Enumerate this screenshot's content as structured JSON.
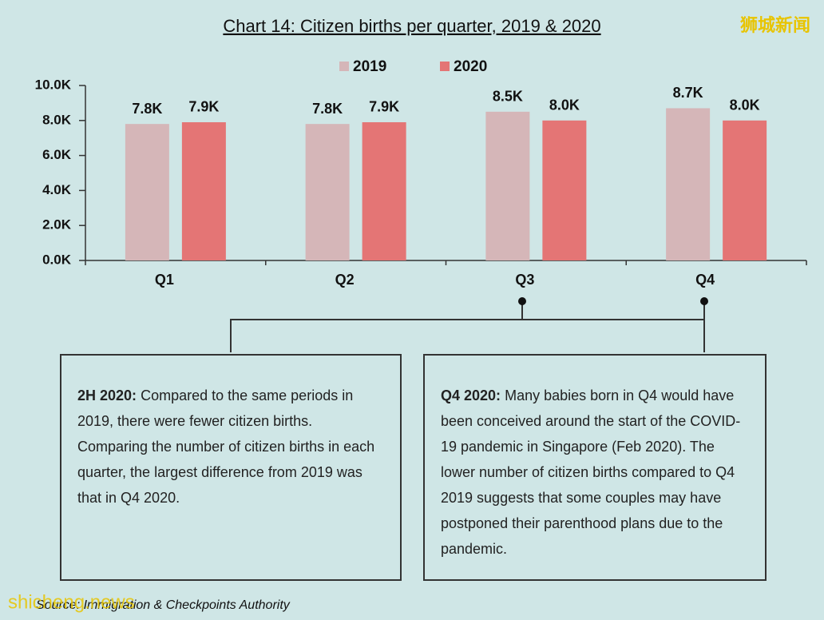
{
  "chart_data": {
    "type": "bar",
    "title": "Chart 14: Citizen births per quarter, 2019 & 2020",
    "categories": [
      "Q1",
      "Q2",
      "Q3",
      "Q4"
    ],
    "series": [
      {
        "name": "2019",
        "color": "#d5b6b8",
        "values": [
          7800,
          7800,
          8500,
          8700
        ],
        "value_labels": [
          "7.8K",
          "7.8K",
          "8.5K",
          "8.7K"
        ]
      },
      {
        "name": "2020",
        "color": "#e47575",
        "values": [
          7900,
          7900,
          8000,
          8000
        ],
        "value_labels": [
          "7.9K",
          "7.9K",
          "8.0K",
          "8.0K"
        ]
      }
    ],
    "ylim": [
      0,
      10000
    ],
    "yticks": [
      {
        "value": 0,
        "label": "0.0K"
      },
      {
        "value": 2000,
        "label": "2.0K"
      },
      {
        "value": 4000,
        "label": "4.0K"
      },
      {
        "value": 6000,
        "label": "6.0K"
      },
      {
        "value": 8000,
        "label": "8.0K"
      },
      {
        "value": 10000,
        "label": "10.0K"
      }
    ],
    "grid": false,
    "legend": "top"
  },
  "annotations": [
    {
      "heading": "2H 2020:",
      "text": "Compared to the same periods in 2019, there were fewer citizen births. Comparing the number of citizen births in each quarter, the largest difference from 2019 was that in Q4 2020."
    },
    {
      "heading": "Q4 2020:",
      "text": "Many babies born in Q4 would have been conceived around the start of the COVID-19 pandemic in Singapore (Feb 2020). The lower number of citizen births compared to Q4 2019 suggests that some couples may have postponed their parenthood plans due to the pandemic."
    }
  ],
  "source": "Source: Immigration & Checkpoints Authority",
  "watermarks": [
    "狮城新闻",
    "shicheng.news"
  ]
}
